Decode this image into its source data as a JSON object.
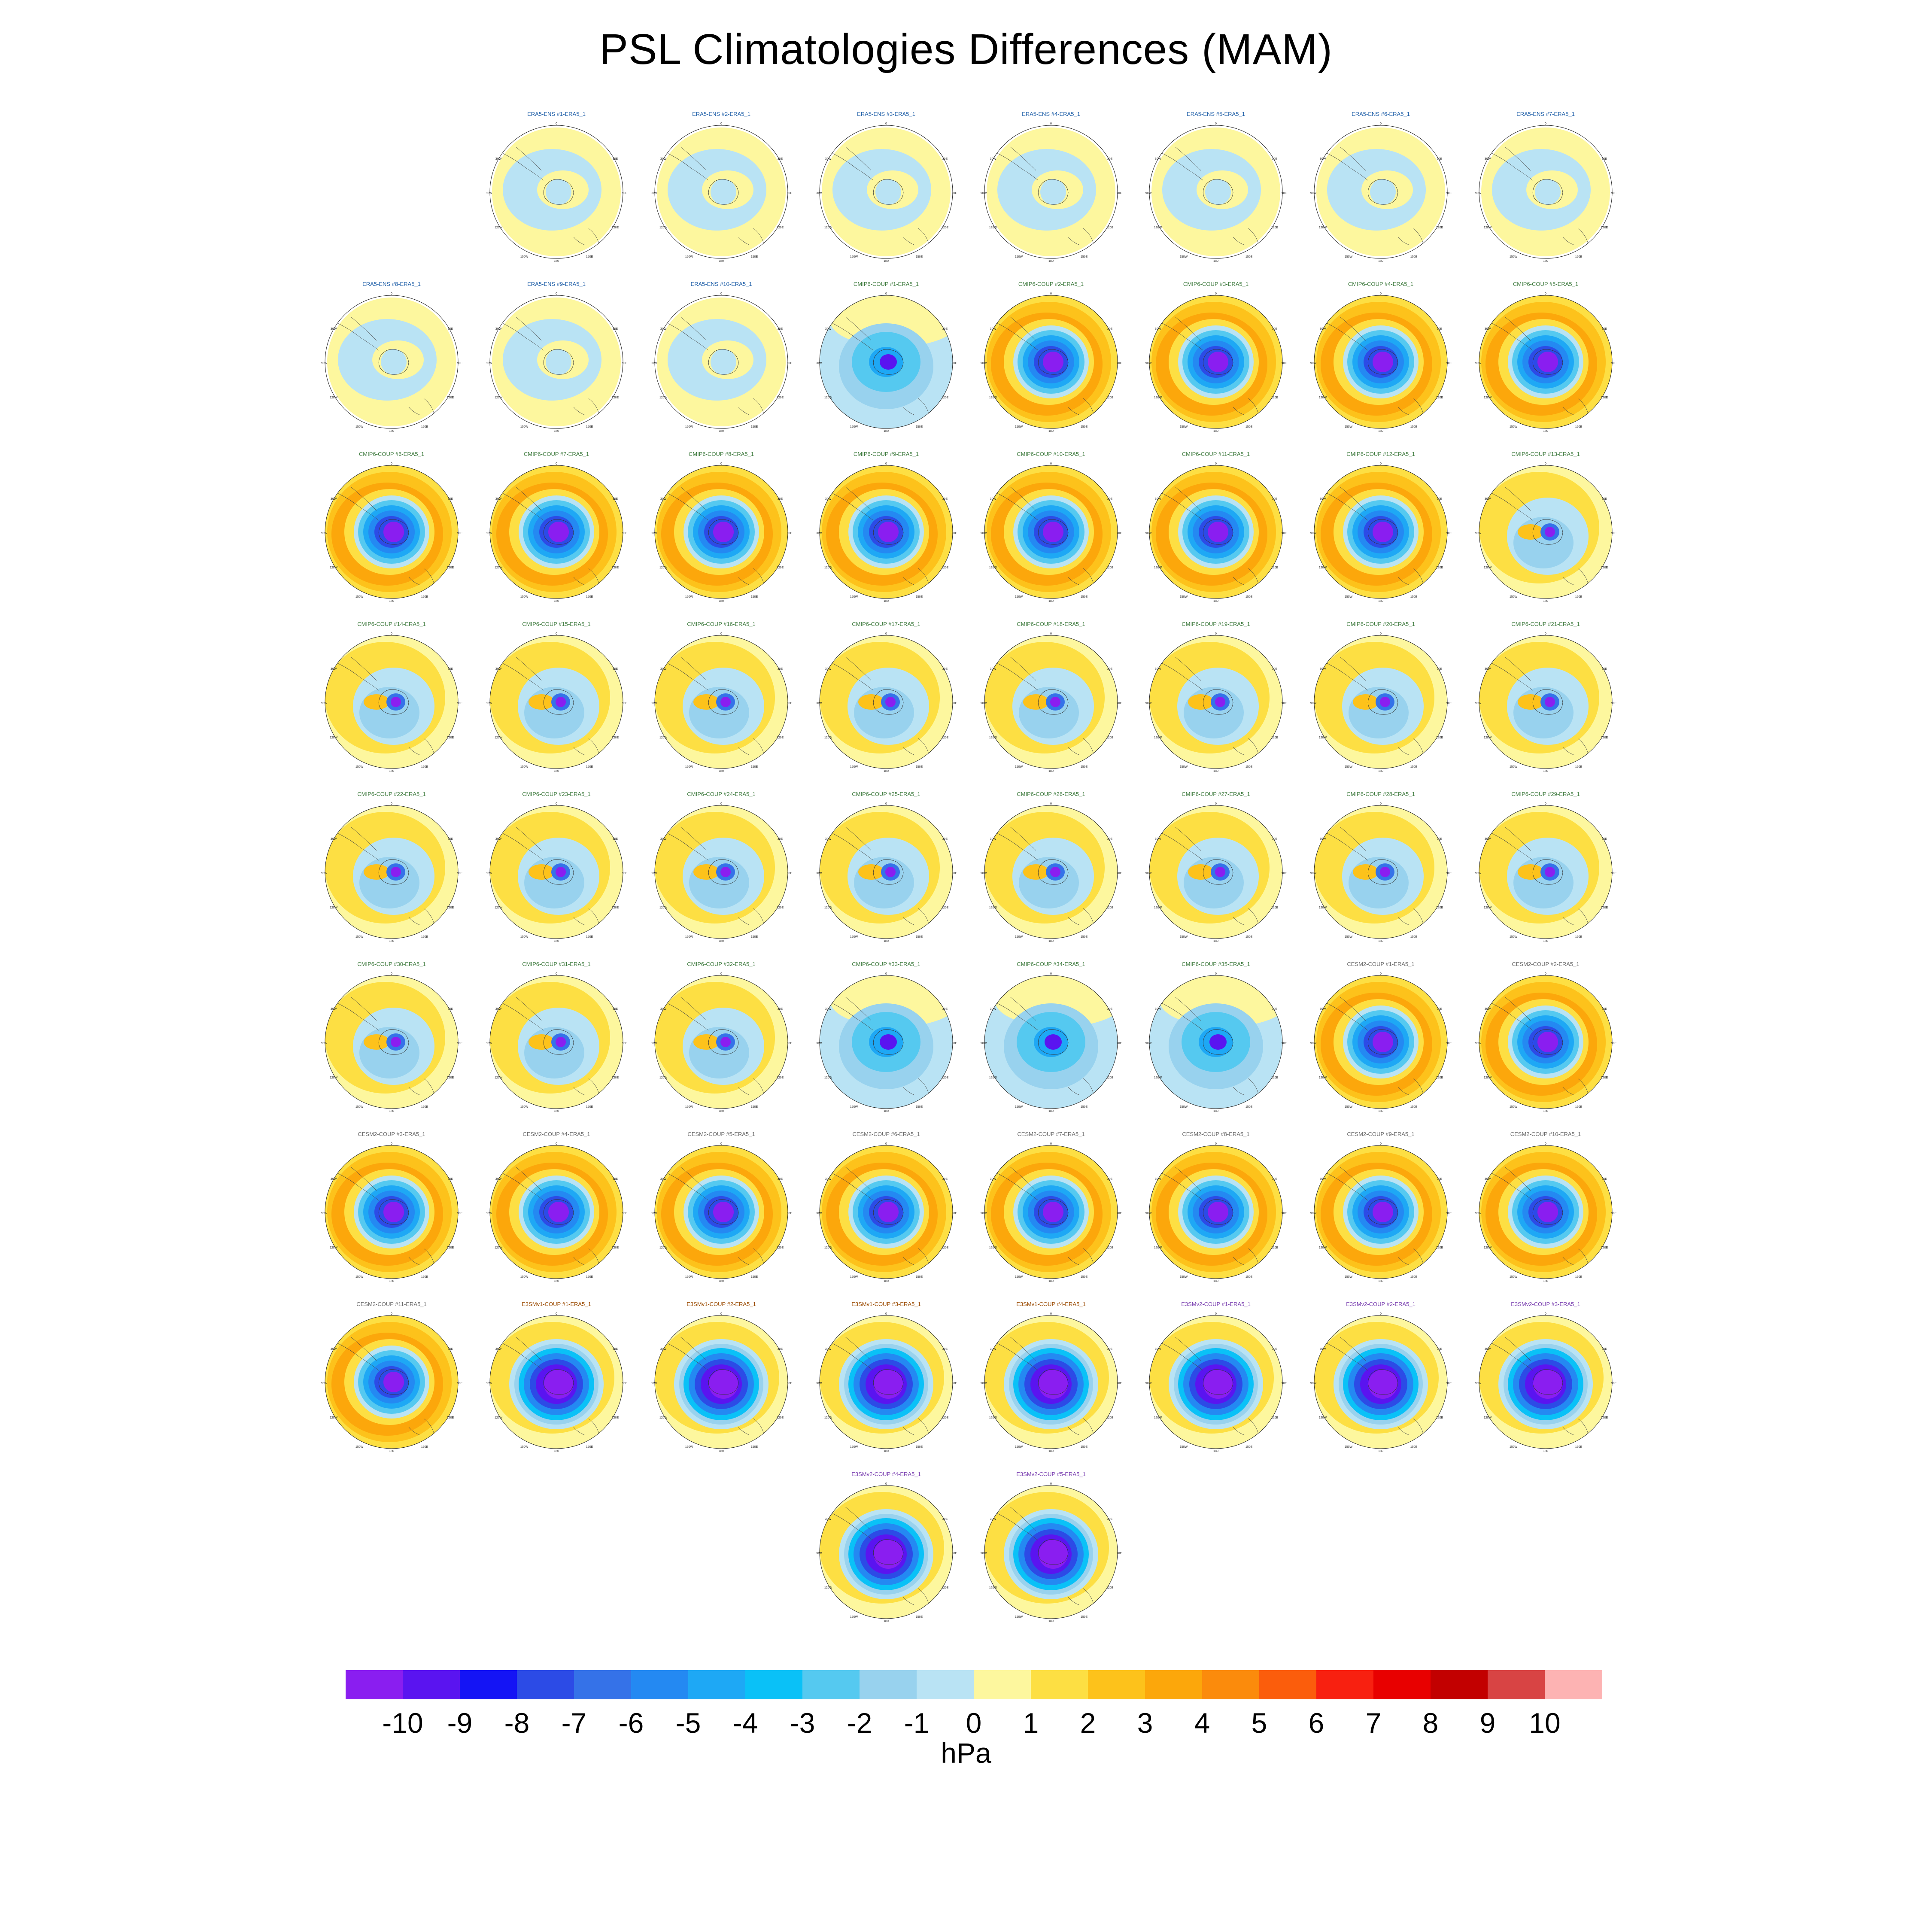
{
  "title": "PSL Climatologies Differences (MAM)",
  "units": "hPa",
  "colorbar": {
    "colors": [
      "#8a1ef0",
      "#5a14f0",
      "#1414f5",
      "#2c4be6",
      "#3572e8",
      "#2489f2",
      "#1ea8f5",
      "#0ac1f7",
      "#55c9f0",
      "#98d2ee",
      "#b9e3f4",
      "#fdf79e",
      "#fddf43",
      "#fdc21b",
      "#fca70b",
      "#fb8b0c",
      "#fb5d0c",
      "#f82010",
      "#e80000",
      "#c20000",
      "#d84444",
      "#fdb3b3"
    ],
    "ticks": [
      "-10",
      "-9",
      "-8",
      "-7",
      "-6",
      "-5",
      "-4",
      "-3",
      "-2",
      "-1",
      "0",
      "1",
      "2",
      "3",
      "4",
      "5",
      "6",
      "7",
      "8",
      "9",
      "10"
    ]
  },
  "map_axis_labels": {
    "top": "0",
    "bottom": "180",
    "left_upper": "30W",
    "right_upper": "30E",
    "left_mid": "90W",
    "right_mid": "90E",
    "left_lower": "120W",
    "right_lower": "120E",
    "bottom_left": "150W",
    "bottom_right": "150E"
  },
  "panels": [
    {
      "label": "ERA5-ENS   #1-ERA5_1",
      "group": "era5",
      "pattern": "neutral"
    },
    {
      "label": "ERA5-ENS   #2-ERA5_1",
      "group": "era5",
      "pattern": "neutral"
    },
    {
      "label": "ERA5-ENS   #3-ERA5_1",
      "group": "era5",
      "pattern": "neutral"
    },
    {
      "label": "ERA5-ENS   #4-ERA5_1",
      "group": "era5",
      "pattern": "neutral"
    },
    {
      "label": "ERA5-ENS   #5-ERA5_1",
      "group": "era5",
      "pattern": "neutral"
    },
    {
      "label": "ERA5-ENS   #6-ERA5_1",
      "group": "era5",
      "pattern": "neutral"
    },
    {
      "label": "ERA5-ENS   #7-ERA5_1",
      "group": "era5",
      "pattern": "neutral"
    },
    {
      "label": "ERA5-ENS   #8-ERA5_1",
      "group": "era5",
      "pattern": "neutral"
    },
    {
      "label": "ERA5-ENS   #9-ERA5_1",
      "group": "era5",
      "pattern": "neutral"
    },
    {
      "label": "ERA5-ENS   #10-ERA5_1",
      "group": "era5",
      "pattern": "neutral"
    },
    {
      "label": "CMIP6-COUP  #1-ERA5_1",
      "group": "cmip6",
      "pattern": "bluewide"
    },
    {
      "label": "CMIP6-COUP  #2-ERA5_1",
      "group": "cmip6",
      "pattern": "strong"
    },
    {
      "label": "CMIP6-COUP  #3-ERA5_1",
      "group": "cmip6",
      "pattern": "strong"
    },
    {
      "label": "CMIP6-COUP  #4-ERA5_1",
      "group": "cmip6",
      "pattern": "strong"
    },
    {
      "label": "CMIP6-COUP  #5-ERA5_1",
      "group": "cmip6",
      "pattern": "strong"
    },
    {
      "label": "CMIP6-COUP  #6-ERA5_1",
      "group": "cmip6",
      "pattern": "strong"
    },
    {
      "label": "CMIP6-COUP  #7-ERA5_1",
      "group": "cmip6",
      "pattern": "strong"
    },
    {
      "label": "CMIP6-COUP  #8-ERA5_1",
      "group": "cmip6",
      "pattern": "strong"
    },
    {
      "label": "CMIP6-COUP  #9-ERA5_1",
      "group": "cmip6",
      "pattern": "strong"
    },
    {
      "label": "CMIP6-COUP  #10-ERA5_1",
      "group": "cmip6",
      "pattern": "strong"
    },
    {
      "label": "CMIP6-COUP  #11-ERA5_1",
      "group": "cmip6",
      "pattern": "strong"
    },
    {
      "label": "CMIP6-COUP  #12-ERA5_1",
      "group": "cmip6",
      "pattern": "strong"
    },
    {
      "label": "CMIP6-COUP  #13-ERA5_1",
      "group": "cmip6",
      "pattern": "mixed"
    },
    {
      "label": "CMIP6-COUP  #14-ERA5_1",
      "group": "cmip6",
      "pattern": "mixed"
    },
    {
      "label": "CMIP6-COUP  #15-ERA5_1",
      "group": "cmip6",
      "pattern": "mixed"
    },
    {
      "label": "CMIP6-COUP  #16-ERA5_1",
      "group": "cmip6",
      "pattern": "mixed"
    },
    {
      "label": "CMIP6-COUP  #17-ERA5_1",
      "group": "cmip6",
      "pattern": "mixed"
    },
    {
      "label": "CMIP6-COUP  #18-ERA5_1",
      "group": "cmip6",
      "pattern": "mixed"
    },
    {
      "label": "CMIP6-COUP  #19-ERA5_1",
      "group": "cmip6",
      "pattern": "mixed"
    },
    {
      "label": "CMIP6-COUP  #20-ERA5_1",
      "group": "cmip6",
      "pattern": "mixed"
    },
    {
      "label": "CMIP6-COUP  #21-ERA5_1",
      "group": "cmip6",
      "pattern": "mixed"
    },
    {
      "label": "CMIP6-COUP  #22-ERA5_1",
      "group": "cmip6",
      "pattern": "mixed"
    },
    {
      "label": "CMIP6-COUP  #23-ERA5_1",
      "group": "cmip6",
      "pattern": "mixed"
    },
    {
      "label": "CMIP6-COUP  #24-ERA5_1",
      "group": "cmip6",
      "pattern": "mixed"
    },
    {
      "label": "CMIP6-COUP  #25-ERA5_1",
      "group": "cmip6",
      "pattern": "mixed"
    },
    {
      "label": "CMIP6-COUP  #26-ERA5_1",
      "group": "cmip6",
      "pattern": "mixed"
    },
    {
      "label": "CMIP6-COUP  #27-ERA5_1",
      "group": "cmip6",
      "pattern": "mixed"
    },
    {
      "label": "CMIP6-COUP  #28-ERA5_1",
      "group": "cmip6",
      "pattern": "mixed"
    },
    {
      "label": "CMIP6-COUP  #29-ERA5_1",
      "group": "cmip6",
      "pattern": "mixed"
    },
    {
      "label": "CMIP6-COUP  #30-ERA5_1",
      "group": "cmip6",
      "pattern": "mixed"
    },
    {
      "label": "CMIP6-COUP  #31-ERA5_1",
      "group": "cmip6",
      "pattern": "mixed"
    },
    {
      "label": "CMIP6-COUP  #32-ERA5_1",
      "group": "cmip6",
      "pattern": "mixed"
    },
    {
      "label": "CMIP6-COUP  #33-ERA5_1",
      "group": "cmip6",
      "pattern": "bluewide"
    },
    {
      "label": "CMIP6-COUP  #34-ERA5_1",
      "group": "cmip6",
      "pattern": "bluewide"
    },
    {
      "label": "CMIP6-COUP  #35-ERA5_1",
      "group": "cmip6",
      "pattern": "bluewide"
    },
    {
      "label": "CESM2-COUP  #1-ERA5_1",
      "group": "cesm2",
      "pattern": "strong"
    },
    {
      "label": "CESM2-COUP  #2-ERA5_1",
      "group": "cesm2",
      "pattern": "strong"
    },
    {
      "label": "CESM2-COUP  #3-ERA5_1",
      "group": "cesm2",
      "pattern": "strong"
    },
    {
      "label": "CESM2-COUP  #4-ERA5_1",
      "group": "cesm2",
      "pattern": "strong"
    },
    {
      "label": "CESM2-COUP  #5-ERA5_1",
      "group": "cesm2",
      "pattern": "strong"
    },
    {
      "label": "CESM2-COUP  #6-ERA5_1",
      "group": "cesm2",
      "pattern": "strong"
    },
    {
      "label": "CESM2-COUP  #7-ERA5_1",
      "group": "cesm2",
      "pattern": "strong"
    },
    {
      "label": "CESM2-COUP  #8-ERA5_1",
      "group": "cesm2",
      "pattern": "strong"
    },
    {
      "label": "CESM2-COUP  #9-ERA5_1",
      "group": "cesm2",
      "pattern": "strong"
    },
    {
      "label": "CESM2-COUP  #10-ERA5_1",
      "group": "cesm2",
      "pattern": "strong"
    },
    {
      "label": "CESM2-COUP  #11-ERA5_1",
      "group": "cesm2",
      "pattern": "strong"
    },
    {
      "label": "E3SMv1-COUP #1-ERA5_1",
      "group": "e3smv1",
      "pattern": "deep"
    },
    {
      "label": "E3SMv1-COUP #2-ERA5_1",
      "group": "e3smv1",
      "pattern": "deep"
    },
    {
      "label": "E3SMv1-COUP #3-ERA5_1",
      "group": "e3smv1",
      "pattern": "deep"
    },
    {
      "label": "E3SMv1-COUP #4-ERA5_1",
      "group": "e3smv1",
      "pattern": "deep"
    },
    {
      "label": "E3SMv2-COUP #1-ERA5_1",
      "group": "e3smv2",
      "pattern": "deep"
    },
    {
      "label": "E3SMv2-COUP #2-ERA5_1",
      "group": "e3smv2",
      "pattern": "deep"
    },
    {
      "label": "E3SMv2-COUP #3-ERA5_1",
      "group": "e3smv2",
      "pattern": "deep"
    },
    {
      "label": "E3SMv2-COUP #4-ERA5_1",
      "group": "e3smv2",
      "pattern": "deep"
    },
    {
      "label": "E3SMv2-COUP #5-ERA5_1",
      "group": "e3smv2",
      "pattern": "deep"
    }
  ],
  "group_colors": {
    "era5": "#1f5fa8",
    "cmip6": "#3d7a3d",
    "cesm2": "#6a6a6a",
    "e3smv1": "#9a4a00",
    "e3smv2": "#7a3fb0"
  }
}
